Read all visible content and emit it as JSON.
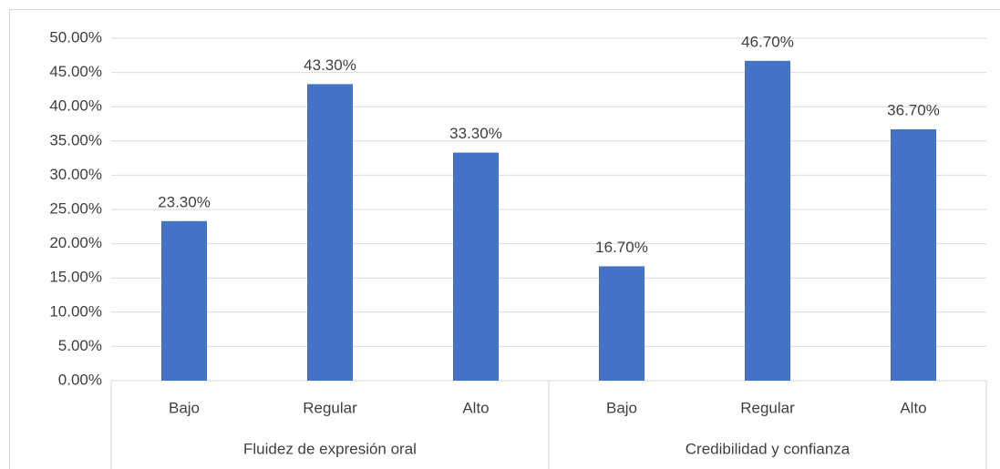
{
  "chart_data": {
    "type": "bar",
    "groups": [
      {
        "name": "Fluidez de expresión oral",
        "categories": [
          "Bajo",
          "Regular",
          "Alto"
        ],
        "values": [
          23.3,
          43.3,
          33.3
        ],
        "value_labels": [
          "23.30%",
          "43.30%",
          "33.30%"
        ]
      },
      {
        "name": "Credibilidad y confianza",
        "categories": [
          "Bajo",
          "Regular",
          "Alto"
        ],
        "values": [
          16.7,
          46.7,
          36.7
        ],
        "value_labels": [
          "16.70%",
          "46.70%",
          "36.70%"
        ]
      }
    ],
    "color": "#4472c4",
    "ylim": [
      0,
      50
    ],
    "yticks": [
      {
        "value": 0,
        "label": "0.00%"
      },
      {
        "value": 5,
        "label": "5.00%"
      },
      {
        "value": 10,
        "label": "10.00%"
      },
      {
        "value": 15,
        "label": "15.00%"
      },
      {
        "value": 20,
        "label": "20.00%"
      },
      {
        "value": 25,
        "label": "25.00%"
      },
      {
        "value": 30,
        "label": "30.00%"
      },
      {
        "value": 35,
        "label": "35.00%"
      },
      {
        "value": 40,
        "label": "40.00%"
      },
      {
        "value": 45,
        "label": "45.00%"
      },
      {
        "value": 50,
        "label": "50.00%"
      }
    ],
    "grid": true
  }
}
